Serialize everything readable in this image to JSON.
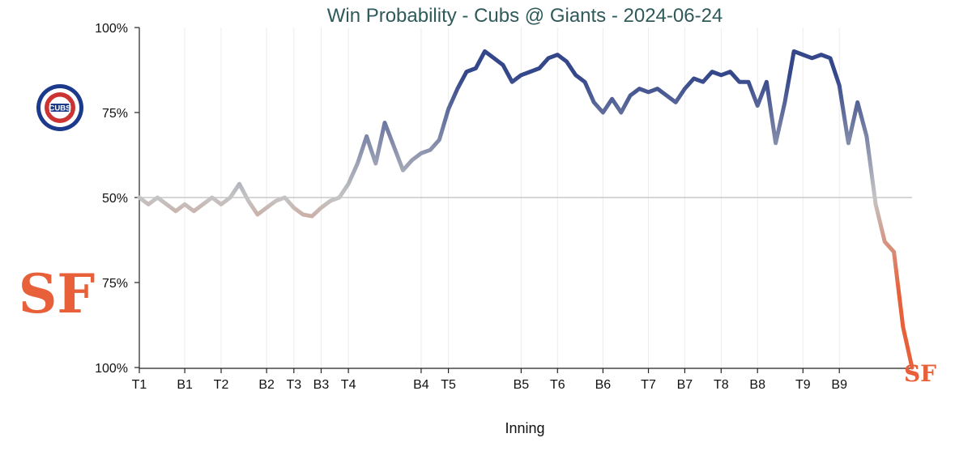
{
  "chart_data": {
    "type": "line",
    "title": "Win Probability - Cubs @ Giants - 2024-06-24",
    "xlabel": "Inning",
    "ylabel": "",
    "y_tick_labels": [
      "100%",
      "75%",
      "50%",
      "75%",
      "100%"
    ],
    "ylim": [
      -50,
      50
    ],
    "grid": true,
    "teams": {
      "top": {
        "name": "Cubs",
        "logo_text": "CUBS",
        "color": "#34478a",
        "ring_color": "#1c3a8c",
        "fill_color": "#cc3433"
      },
      "bottom": {
        "name": "Giants",
        "logo_text": "SF",
        "color": "#e8603a"
      }
    },
    "neutral_color": "#c4c4c4",
    "innings": [
      "T1",
      "B1",
      "T2",
      "B2",
      "T3",
      "B3",
      "T4",
      "B4",
      "T5",
      "B5",
      "T6",
      "B6",
      "T7",
      "B7",
      "T8",
      "B8",
      "T9",
      "B9"
    ],
    "inning_start_index": [
      0,
      5,
      9,
      14,
      17,
      20,
      23,
      31,
      34,
      42,
      46,
      51,
      56,
      60,
      64,
      68,
      73,
      77
    ],
    "series": [
      {
        "values": [
          0,
          -2,
          0,
          -2,
          -4,
          -2,
          -4,
          -2,
          0,
          -2,
          0,
          4,
          -1,
          -5,
          -3,
          -1,
          0,
          -3,
          -5,
          -5.5,
          -3,
          -1,
          0,
          4,
          10,
          18,
          10,
          22,
          15,
          8,
          11,
          13,
          14,
          17,
          26,
          32,
          37,
          38,
          43,
          41,
          39,
          34,
          36,
          37,
          38,
          41,
          42,
          40,
          36,
          34,
          28,
          25,
          29,
          25,
          30,
          32,
          31,
          32,
          30,
          28,
          32,
          35,
          34,
          37,
          36,
          37,
          34,
          34,
          27,
          34,
          16,
          28,
          43,
          42,
          41,
          42,
          41,
          33,
          16,
          28,
          18,
          -2,
          -13,
          -16,
          -38,
          -50
        ]
      }
    ]
  }
}
